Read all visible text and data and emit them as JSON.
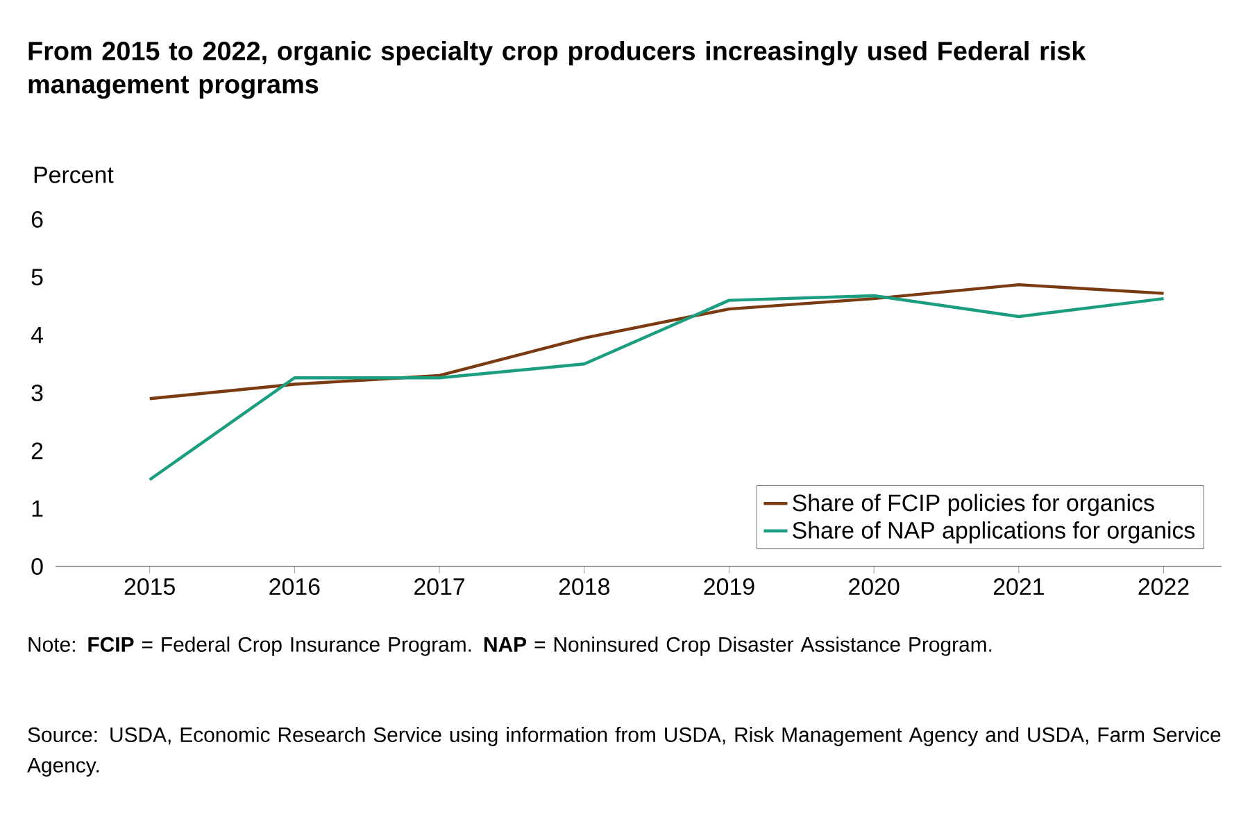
{
  "chart_data": {
    "type": "line",
    "title": "From 2015 to 2022, organic specialty crop producers increasingly used Federal risk management programs",
    "ylabel": "Percent",
    "categories": [
      "2015",
      "2016",
      "2017",
      "2018",
      "2019",
      "2020",
      "2021",
      "2022"
    ],
    "series": [
      {
        "name": "Share of FCIP policies for organics",
        "color": "#7a3b12",
        "values": [
          2.9,
          3.15,
          3.3,
          3.95,
          4.45,
          4.63,
          4.87,
          4.72
        ]
      },
      {
        "name": "Share of NAP applications for organics",
        "color": "#1b9e80",
        "values": [
          1.5,
          3.26,
          3.26,
          3.5,
          4.6,
          4.68,
          4.32,
          4.63
        ]
      }
    ],
    "ylim": [
      0,
      6
    ],
    "yticks": [
      0,
      1,
      2,
      3,
      4,
      5,
      6
    ],
    "grid": false,
    "legend": "bottom right",
    "marker": "none",
    "line_style": "solid",
    "annotations": [
      "Note: **FCIP** = Federal Crop Insurance Program. **NAP** = Noninsured Crop Disaster Assistance Program.",
      "Source: USDA, Economic Research Service using information from USDA, Risk Management Agency and USDA, Farm Service Agency."
    ]
  }
}
